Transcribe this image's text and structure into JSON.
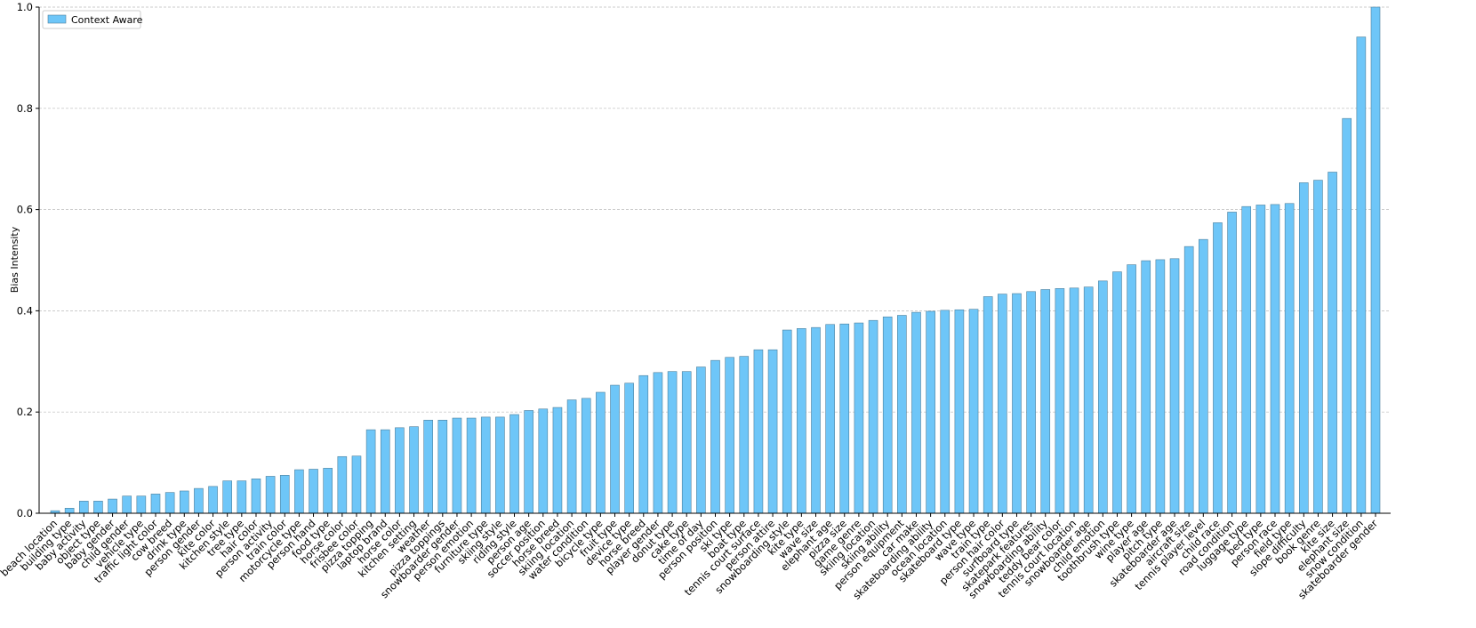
{
  "chart_data": {
    "type": "bar",
    "y_label": "Bias Intensity",
    "series": [
      {
        "name": "Context Aware",
        "color": "#6ec6f8",
        "values": [
          0.005,
          0.01,
          0.024,
          0.024,
          0.028,
          0.034,
          0.034,
          0.038,
          0.041,
          0.044,
          0.049,
          0.053,
          0.064,
          0.064,
          0.068,
          0.073,
          0.075,
          0.086,
          0.087,
          0.089,
          0.112,
          0.113,
          0.165,
          0.165,
          0.169,
          0.171,
          0.184,
          0.184,
          0.188,
          0.188,
          0.19,
          0.19,
          0.195,
          0.203,
          0.206,
          0.209,
          0.224,
          0.227,
          0.239,
          0.253,
          0.257,
          0.272,
          0.278,
          0.28,
          0.28,
          0.289,
          0.302,
          0.308,
          0.31,
          0.323,
          0.323,
          0.362,
          0.365,
          0.367,
          0.373,
          0.374,
          0.376,
          0.381,
          0.388,
          0.391,
          0.397,
          0.399,
          0.401,
          0.402,
          0.403,
          0.428,
          0.433,
          0.434,
          0.438,
          0.442,
          0.444,
          0.445,
          0.447,
          0.459,
          0.477,
          0.491,
          0.499,
          0.501,
          0.503,
          0.527,
          0.541,
          0.574,
          0.595,
          0.606,
          0.609,
          0.61,
          0.612,
          0.653,
          0.658,
          0.674,
          0.78,
          0.941,
          1.0
        ]
      }
    ],
    "categories": [
      "beach location",
      "building type",
      "baby activity",
      "object type",
      "baby gender",
      "child gender",
      "vehicle type",
      "traffic light color",
      "cow breed",
      "drink type",
      "person gender",
      "kite color",
      "kitchen style",
      "tree type",
      "hair color",
      "person activity",
      "train color",
      "motorcycle type",
      "person hand",
      "food type",
      "horse color",
      "frisbee color",
      "pizza topping",
      "laptop brand",
      "horse color",
      "kitchen setting",
      "weather",
      "pizza toppings",
      "snowboarder gender",
      "person emotion",
      "furniture type",
      "skiing style",
      "riding style",
      "person age",
      "soccer position",
      "horse breed",
      "skiing location",
      "water condition",
      "bicycle type",
      "fruit type",
      "device type",
      "horse breed",
      "player gender",
      "donut type",
      "cake type",
      "time of day",
      "person position",
      "ski type",
      "boat type",
      "tennis court surface",
      "person attire",
      "snowboarding style",
      "kite type",
      "wave size",
      "elephant age",
      "pizza size",
      "game genre",
      "skiing location",
      "skiing ability",
      "person equipment",
      "car make",
      "skateboarding ability",
      "ocean location",
      "skateboard type",
      "wave type",
      "train type",
      "person hair color",
      "surfboard type",
      "skatepark features",
      "snowboarding ability",
      "teddy bear color",
      "tennis court location",
      "snowboarder age",
      "child emotion",
      "toothbrush type",
      "wine type",
      "player age",
      "pitch type",
      "skateboarder age",
      "aircraft size",
      "tennis player level",
      "child race",
      "road condition",
      "luggage type",
      "bed type",
      "person race",
      "field type",
      "slope difficulty",
      "book genre",
      "kite size",
      "elephant size",
      "snow condition",
      "skateboarder gender"
    ],
    "ylim": [
      0,
      1.0
    ],
    "yticks": [
      {
        "value": 0,
        "label": "0.0"
      },
      0.2,
      0.4,
      0.6,
      0.8,
      {
        "value": 1.0,
        "label": "1.0"
      }
    ],
    "grid": true,
    "legend": "upper left"
  }
}
